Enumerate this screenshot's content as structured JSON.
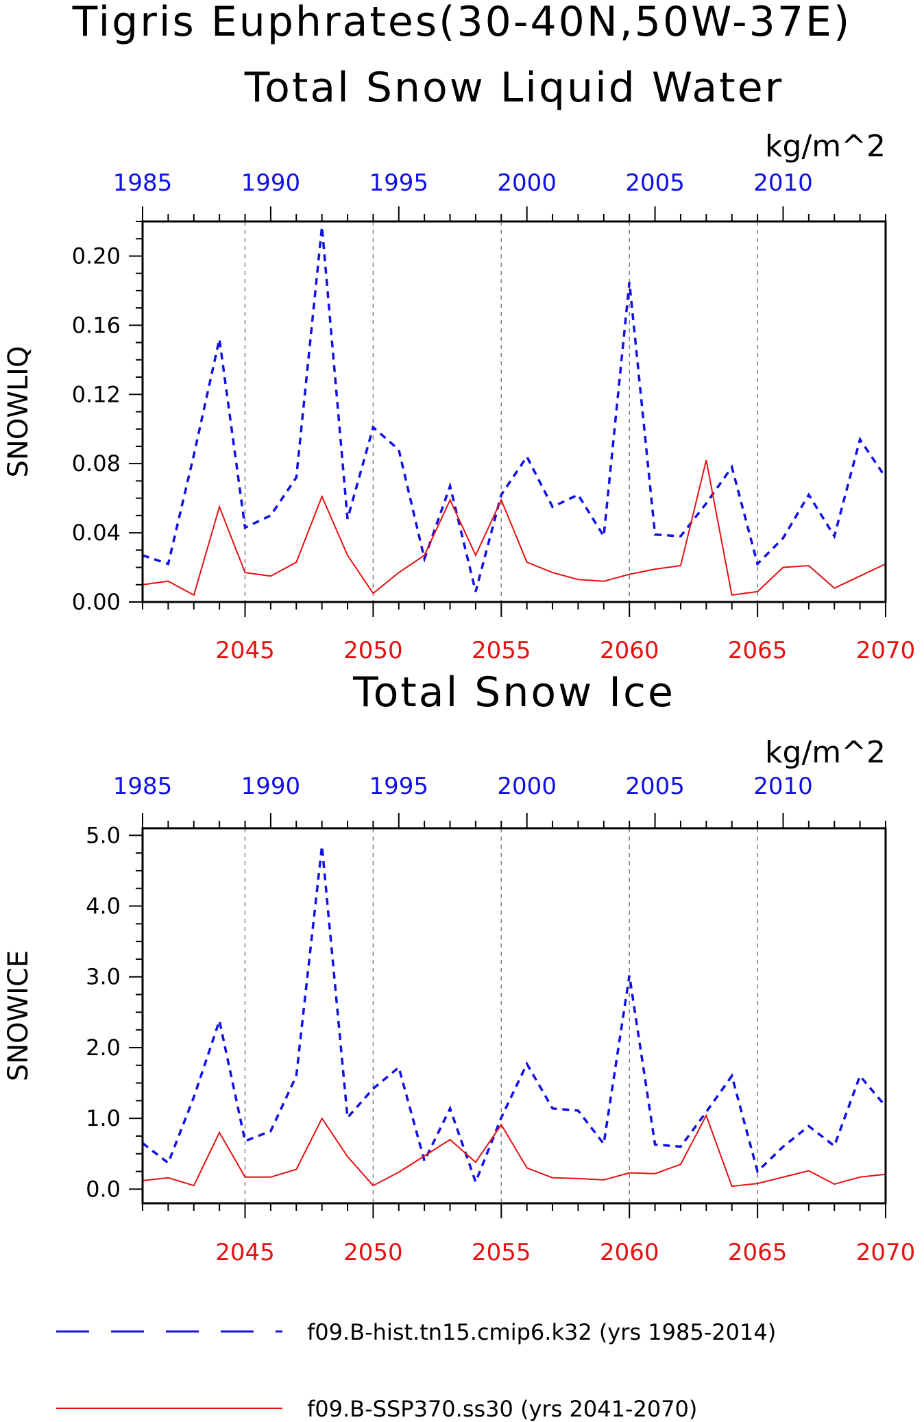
{
  "figure": {
    "title_line1": "Tigris Euphrates(30-40N,50W-37E)",
    "title_line2": "Total Snow Liquid Water",
    "title_panel2": "Total Snow Ice"
  },
  "legend": [
    {
      "label": "f09.B-hist.tn15.cmip6.k32 (yrs 1985-2014)",
      "color": "#1010e6",
      "style": "dashed"
    },
    {
      "label": "f09.B-SSP370.ss30 (yrs 2041-2070)",
      "color": "#e61010",
      "style": "solid"
    }
  ],
  "chart_data": [
    {
      "type": "line",
      "title": "Total Snow Liquid Water",
      "units": "kg/m^2",
      "ylabel": "SNOWLIQ",
      "ylim": [
        0,
        0.22
      ],
      "yticks": [
        "0.00",
        "0.04",
        "0.08",
        "0.12",
        "0.16",
        "0.20"
      ],
      "x_bottom": {
        "range": [
          2041,
          2070
        ],
        "ticks": [
          "2045",
          "2050",
          "2055",
          "2060",
          "2065",
          "2070"
        ],
        "color": "#e61010"
      },
      "x_top": {
        "range": [
          1985,
          2014
        ],
        "ticks": [
          "1985",
          "1990",
          "1995",
          "2000",
          "2005",
          "2010"
        ],
        "color": "#1010e6"
      },
      "grid": "vertical dashed at bottom-axis major ticks",
      "series": [
        {
          "name": "f09.B-hist.tn15.cmip6.k32 (yrs 1985-2014)",
          "color": "#1010e6",
          "style": "dashed",
          "x": [
            1985,
            1986,
            1987,
            1988,
            1989,
            1990,
            1991,
            1992,
            1993,
            1994,
            1995,
            1996,
            1997,
            1998,
            1999,
            2000,
            2001,
            2002,
            2003,
            2004,
            2005,
            2006,
            2007,
            2008,
            2009,
            2010,
            2011,
            2012,
            2013,
            2014
          ],
          "values": [
            0.027,
            0.022,
            0.085,
            0.152,
            0.043,
            0.05,
            0.072,
            0.217,
            0.048,
            0.101,
            0.088,
            0.025,
            0.067,
            0.006,
            0.062,
            0.084,
            0.055,
            0.062,
            0.038,
            0.185,
            0.039,
            0.038,
            0.057,
            0.078,
            0.022,
            0.037,
            0.062,
            0.038,
            0.094,
            0.072
          ]
        },
        {
          "name": "f09.B-SSP370.ss30 (yrs 2041-2070)",
          "color": "#e61010",
          "style": "solid",
          "x": [
            2041,
            2042,
            2043,
            2044,
            2045,
            2046,
            2047,
            2048,
            2049,
            2050,
            2051,
            2052,
            2053,
            2054,
            2055,
            2056,
            2057,
            2058,
            2059,
            2060,
            2061,
            2062,
            2063,
            2064,
            2065,
            2066,
            2067,
            2068,
            2069,
            2070
          ],
          "values": [
            0.01,
            0.012,
            0.004,
            0.055,
            0.017,
            0.015,
            0.023,
            0.061,
            0.027,
            0.005,
            0.017,
            0.027,
            0.059,
            0.027,
            0.059,
            0.023,
            0.017,
            0.013,
            0.012,
            0.016,
            0.019,
            0.021,
            0.082,
            0.004,
            0.006,
            0.02,
            0.021,
            0.008,
            0.015,
            0.022
          ]
        }
      ]
    },
    {
      "type": "line",
      "title": "Total Snow Ice",
      "units": "kg/m^2",
      "ylabel": "SNOWICE",
      "ylim": [
        -0.2,
        5.1
      ],
      "yticks": [
        "0.0",
        "1.0",
        "2.0",
        "3.0",
        "4.0",
        "5.0"
      ],
      "x_bottom": {
        "range": [
          2041,
          2070
        ],
        "ticks": [
          "2045",
          "2050",
          "2055",
          "2060",
          "2065",
          "2070"
        ],
        "color": "#e61010"
      },
      "x_top": {
        "range": [
          1985,
          2014
        ],
        "ticks": [
          "1985",
          "1990",
          "1995",
          "2000",
          "2005",
          "2010"
        ],
        "color": "#1010e6"
      },
      "grid": "vertical dashed at bottom-axis major ticks",
      "series": [
        {
          "name": "f09.B-hist.tn15.cmip6.k32 (yrs 1985-2014)",
          "color": "#1010e6",
          "style": "dashed",
          "x": [
            1985,
            1986,
            1987,
            1988,
            1989,
            1990,
            1991,
            1992,
            1993,
            1994,
            1995,
            1996,
            1997,
            1998,
            1999,
            2000,
            2001,
            2002,
            2003,
            2004,
            2005,
            2006,
            2007,
            2008,
            2009,
            2010,
            2011,
            2012,
            2013,
            2014
          ],
          "values": [
            0.65,
            0.37,
            1.3,
            2.38,
            0.68,
            0.82,
            1.6,
            4.85,
            1.01,
            1.42,
            1.72,
            0.4,
            1.14,
            0.1,
            1.01,
            1.77,
            1.14,
            1.11,
            0.64,
            3.02,
            0.63,
            0.6,
            1.09,
            1.6,
            0.25,
            0.6,
            0.89,
            0.61,
            1.6,
            1.17
          ]
        },
        {
          "name": "f09.B-SSP370.ss30 (yrs 2041-2070)",
          "color": "#e61010",
          "style": "solid",
          "x": [
            2041,
            2042,
            2043,
            2044,
            2045,
            2046,
            2047,
            2048,
            2049,
            2050,
            2051,
            2052,
            2053,
            2054,
            2055,
            2056,
            2057,
            2058,
            2059,
            2060,
            2061,
            2062,
            2063,
            2064,
            2065,
            2066,
            2067,
            2068,
            2069,
            2070
          ],
          "values": [
            0.12,
            0.16,
            0.05,
            0.8,
            0.17,
            0.17,
            0.28,
            1.0,
            0.46,
            0.05,
            0.24,
            0.47,
            0.7,
            0.38,
            0.91,
            0.3,
            0.16,
            0.15,
            0.13,
            0.23,
            0.22,
            0.35,
            1.04,
            0.04,
            0.08,
            0.17,
            0.26,
            0.07,
            0.17,
            0.21
          ]
        }
      ]
    }
  ]
}
